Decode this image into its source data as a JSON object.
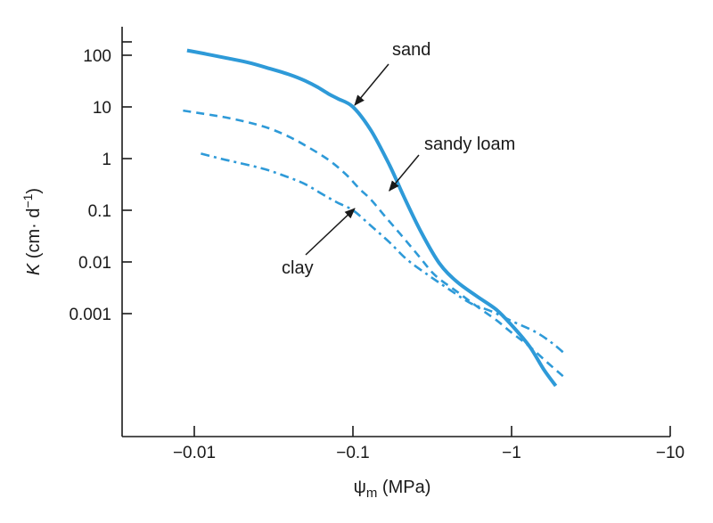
{
  "chart_data": {
    "type": "line",
    "title": "",
    "xlabel": {
      "symbol": "ψ",
      "subscript": "m",
      "unit": " (MPa)"
    },
    "ylabel": {
      "symbol": "K",
      "unit_open": " (cm· d",
      "unit_sup": "−1",
      "unit_close": ")"
    },
    "x_scale": "log (symlog of negative water potential)",
    "y_scale": "log",
    "x_ticks": [
      {
        "value": -0.01,
        "label": "−0.01"
      },
      {
        "value": -0.1,
        "label": "−0.1"
      },
      {
        "value": -1,
        "label": "−1"
      },
      {
        "value": -10,
        "label": "−10"
      }
    ],
    "y_ticks": [
      {
        "value": 100,
        "label": "100"
      },
      {
        "value": 10,
        "label": "10"
      },
      {
        "value": 1,
        "label": "1"
      },
      {
        "value": 0.1,
        "label": "0.1"
      },
      {
        "value": 0.01,
        "label": "0.01"
      },
      {
        "value": 0.001,
        "label": "0.001"
      }
    ],
    "xlim": [
      -0.0035,
      -10
    ],
    "ylim": [
      2e-06,
      300
    ],
    "grid": false,
    "series": [
      {
        "name": "sand",
        "color": "#2e9ad8",
        "style": "solid",
        "points": [
          [
            -0.009,
            124
          ],
          [
            -0.012,
            105
          ],
          [
            -0.016,
            88
          ],
          [
            -0.022,
            72
          ],
          [
            -0.03,
            55
          ],
          [
            -0.04,
            42
          ],
          [
            -0.05,
            32
          ],
          [
            -0.06,
            24
          ],
          [
            -0.07,
            18
          ],
          [
            -0.08,
            14.5
          ],
          [
            -0.1,
            10
          ],
          [
            -0.13,
            3.5
          ],
          [
            -0.17,
            0.75
          ],
          [
            -0.21,
            0.18
          ],
          [
            -0.27,
            0.037
          ],
          [
            -0.35,
            0.0095
          ],
          [
            -0.45,
            0.0042
          ],
          [
            -0.6,
            0.0022
          ],
          [
            -0.8,
            0.0012
          ],
          [
            -1.0,
            0.0006
          ],
          [
            -1.3,
            0.00023
          ],
          [
            -1.6,
            8.2e-05
          ],
          [
            -1.9,
            4e-05
          ]
        ]
      },
      {
        "name": "sandy loam",
        "color": "#2e9ad8",
        "style": "dashed",
        "points": [
          [
            -0.0085,
            8.5
          ],
          [
            -0.012,
            7.2
          ],
          [
            -0.016,
            6.2
          ],
          [
            -0.022,
            5
          ],
          [
            -0.03,
            3.8
          ],
          [
            -0.04,
            2.6
          ],
          [
            -0.05,
            1.8
          ],
          [
            -0.07,
            0.95
          ],
          [
            -0.09,
            0.5
          ],
          [
            -0.11,
            0.26
          ],
          [
            -0.13,
            0.16
          ],
          [
            -0.16,
            0.075
          ],
          [
            -0.2,
            0.034
          ],
          [
            -0.26,
            0.013
          ],
          [
            -0.33,
            0.0055
          ],
          [
            -0.45,
            0.0027
          ],
          [
            -0.6,
            0.0014
          ],
          [
            -0.8,
            0.00075
          ],
          [
            -1.0,
            0.00043
          ],
          [
            -1.3,
            0.00023
          ],
          [
            -1.7,
            0.00011
          ],
          [
            -2.2,
            5.5e-05
          ]
        ]
      },
      {
        "name": "clay",
        "color": "#2e9ad8",
        "style": "dashdot",
        "points": [
          [
            -0.011,
            1.25
          ],
          [
            -0.015,
            0.98
          ],
          [
            -0.02,
            0.8
          ],
          [
            -0.028,
            0.62
          ],
          [
            -0.038,
            0.45
          ],
          [
            -0.05,
            0.32
          ],
          [
            -0.065,
            0.2
          ],
          [
            -0.08,
            0.14
          ],
          [
            -0.1,
            0.1
          ],
          [
            -0.13,
            0.05
          ],
          [
            -0.17,
            0.024
          ],
          [
            -0.22,
            0.011
          ],
          [
            -0.3,
            0.0055
          ],
          [
            -0.4,
            0.003
          ],
          [
            -0.55,
            0.0016
          ],
          [
            -0.75,
            0.0011
          ],
          [
            -1.0,
            0.00072
          ],
          [
            -1.4,
            0.00045
          ],
          [
            -1.8,
            0.00027
          ],
          [
            -2.2,
            0.00016
          ]
        ]
      }
    ],
    "annotations": [
      {
        "text": "sand",
        "series": "sand",
        "arrow_to": [
          -0.1,
          10
        ]
      },
      {
        "text": "sandy loam",
        "series": "sandy loam",
        "arrow_to": [
          -0.165,
          0.22
        ]
      },
      {
        "text": "clay",
        "series": "clay",
        "arrow_to": [
          -0.1,
          0.1
        ]
      }
    ]
  }
}
